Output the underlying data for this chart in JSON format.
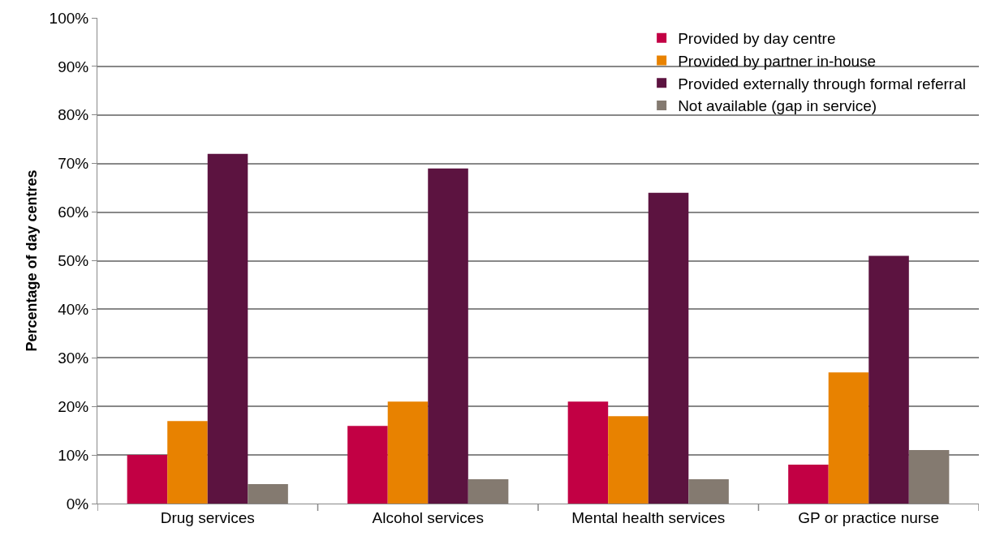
{
  "chart_data": {
    "type": "bar",
    "ylabel": "Percentage of day centres",
    "categories": [
      "Drug services",
      "Alcohol services",
      "Mental health services",
      "GP or practice nurse"
    ],
    "series": [
      {
        "name": "Provided by day centre",
        "color": "#c20044",
        "values": [
          10,
          16,
          21,
          8
        ]
      },
      {
        "name": "Provided by partner in-house",
        "color": "#e88200",
        "values": [
          17,
          21,
          18,
          27
        ]
      },
      {
        "name": "Provided externally through formal referral",
        "color": "#5c1340",
        "values": [
          72,
          69,
          64,
          51
        ]
      },
      {
        "name": "Not available (gap in service)",
        "color": "#847a70",
        "values": [
          4,
          5,
          5,
          11
        ]
      }
    ],
    "ylim": [
      0,
      100
    ],
    "yticks": [
      {
        "value": 0,
        "label": "0%"
      },
      {
        "value": 10,
        "label": "10%"
      },
      {
        "value": 20,
        "label": "20%"
      },
      {
        "value": 30,
        "label": "30%"
      },
      {
        "value": 40,
        "label": "40%"
      },
      {
        "value": 50,
        "label": "50%"
      },
      {
        "value": 60,
        "label": "60%"
      },
      {
        "value": 70,
        "label": "70%"
      },
      {
        "value": 80,
        "label": "80%"
      },
      {
        "value": 90,
        "label": "90%"
      },
      {
        "value": 100,
        "label": "100%"
      }
    ],
    "grid": "y",
    "legend": "top right"
  }
}
